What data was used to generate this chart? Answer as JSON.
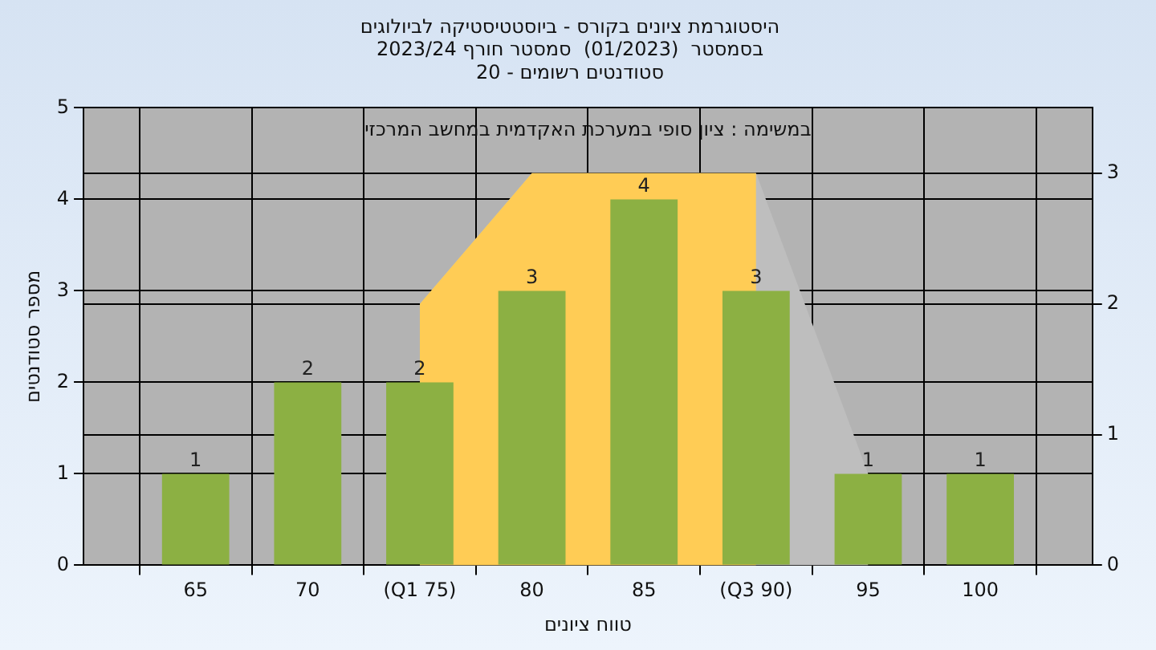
{
  "chart_data": {
    "type": "bar",
    "title": "היסטוגרמת ציונים בקורס - ביוסטטיסטיקה לביולוגים",
    "subtitle": "בסמסטר  (01/2023)  סמסטר חורף 2023/24\nסטודנטים רשומים - 20",
    "xlabel": "טווח ציונים",
    "ylabel": "מספר סטודנטים",
    "annotations": [
      "במשימה : ציון סופי במערכת האקדמית במחשב המרכזי"
    ],
    "categories": [
      "65",
      "70",
      "(Q1 75)",
      "80",
      "85",
      "(Q3 90)",
      "95",
      "100"
    ],
    "series": [
      {
        "color": "#8cb043",
        "values": [
          1,
          2,
          2,
          3,
          4,
          3,
          1,
          1
        ],
        "value_labels": [
          "1",
          "2",
          "2",
          "3",
          "4",
          "3",
          "1",
          "1"
        ]
      },
      {
        "type": "area",
        "axis": "y2",
        "color": "#ffcc55",
        "values": [
          null,
          null,
          2,
          3,
          3,
          3,
          null,
          null
        ]
      },
      {
        "type": "area",
        "axis": "y2",
        "color": "#bebebe",
        "values": [
          null,
          null,
          2,
          3,
          3,
          3,
          0.7,
          null
        ]
      }
    ],
    "ylim": [
      0,
      5
    ],
    "yticks": [
      0,
      1,
      2,
      3,
      4,
      5
    ],
    "y2lim": [
      0,
      3.5
    ],
    "y2ticks": [
      0,
      1,
      2,
      3
    ],
    "grid": true,
    "legend": false
  }
}
